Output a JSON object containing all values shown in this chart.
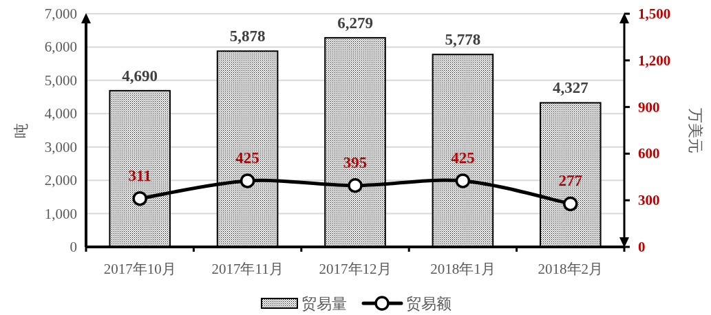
{
  "chart_data": {
    "type": "bar",
    "categories": [
      "2017年10月",
      "2017年11月",
      "2017年12月",
      "2018年1月",
      "2018年2月"
    ],
    "series": [
      {
        "name": "贸易量",
        "color": "#000000",
        "values": [
          4690,
          5878,
          6279,
          5778,
          4327
        ],
        "value_labels": [
          "4,690",
          "5,878",
          "6,279",
          "5,778",
          "4,327"
        ]
      },
      {
        "name": "贸易额",
        "type": "line",
        "axis": "y2",
        "color": "#000000",
        "values": [
          311,
          425,
          395,
          425,
          277
        ],
        "value_labels": [
          "311",
          "425",
          "395",
          "425",
          "277"
        ]
      }
    ],
    "ylabel": "吨",
    "y2label": "万美元",
    "ylim": [
      0,
      7000
    ],
    "yticks": [
      0,
      {
        "value": 1000,
        "label": "1,000"
      },
      {
        "value": 2000,
        "label": "2,000"
      },
      {
        "value": 3000,
        "label": "3,000"
      },
      {
        "value": 4000,
        "label": "4,000"
      },
      {
        "value": 5000,
        "label": "5,000"
      },
      {
        "value": 6000,
        "label": "6,000"
      },
      {
        "value": 7000,
        "label": "7,000"
      }
    ],
    "y2lim": [
      0,
      1500
    ],
    "y2ticks": [
      0,
      300,
      600,
      900,
      {
        "value": 1200,
        "label": "1,200"
      },
      {
        "value": 1500,
        "label": "1,500"
      }
    ],
    "grid": "y",
    "legend": "bottom",
    "marker": "circle",
    "line_style": "solid"
  }
}
